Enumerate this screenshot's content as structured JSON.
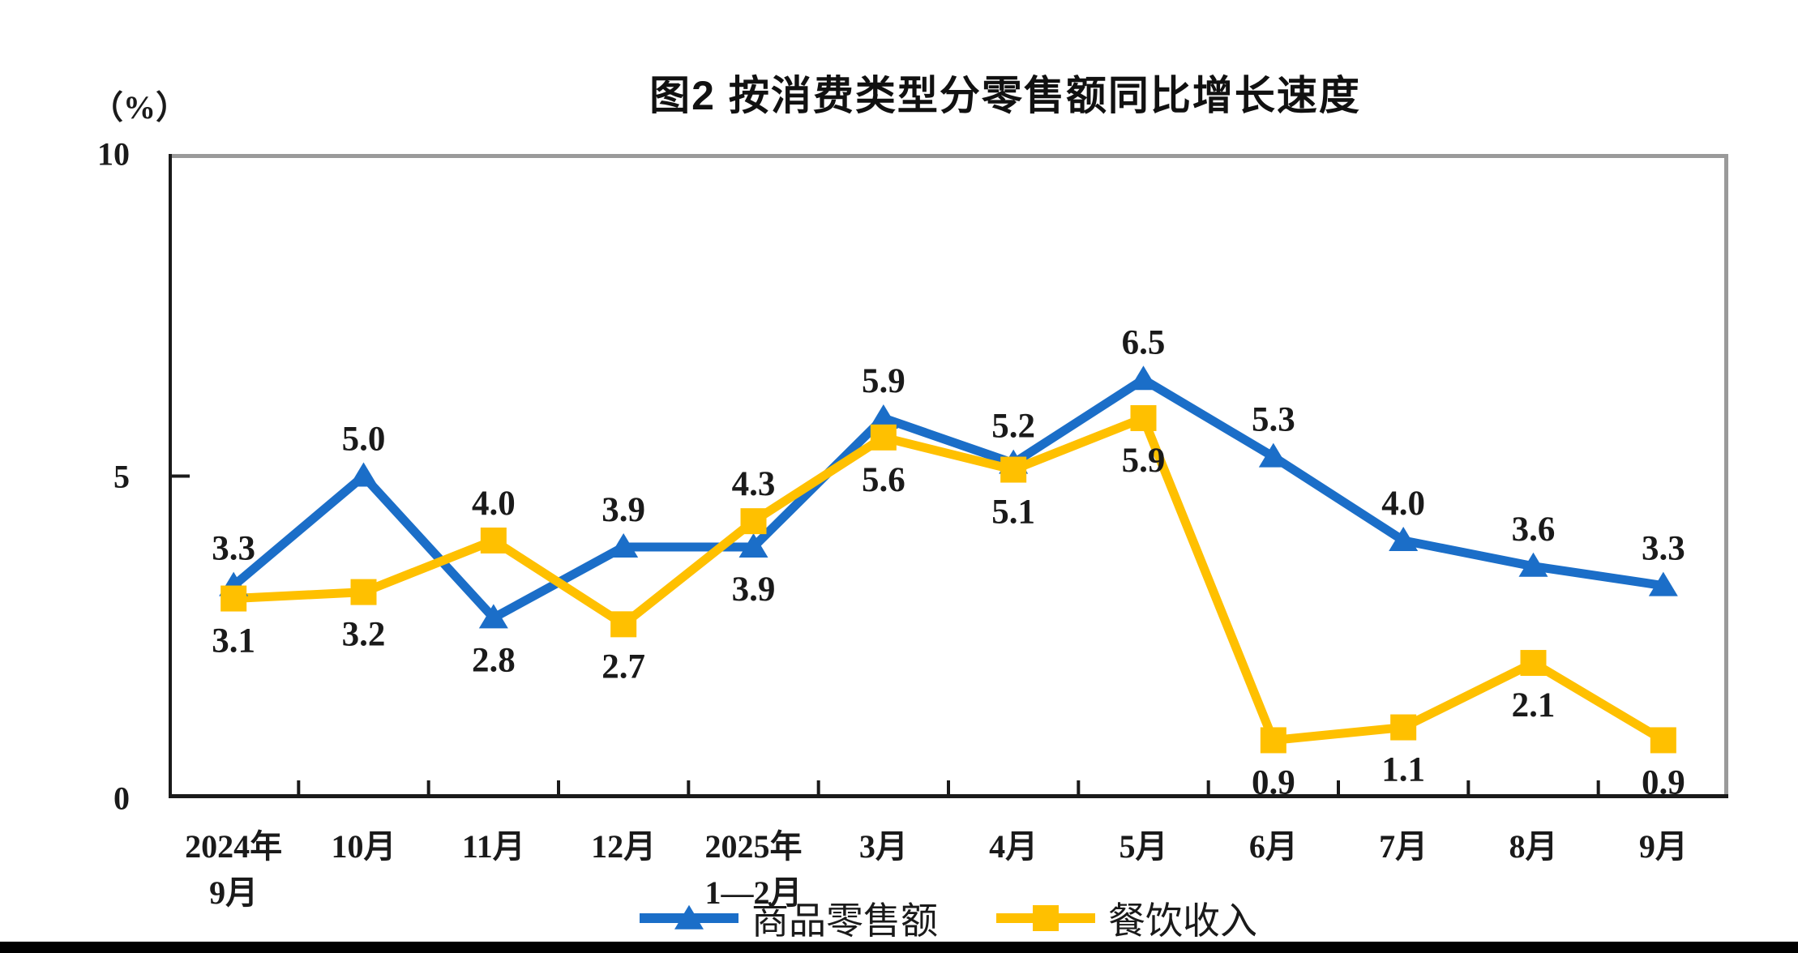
{
  "title": "图2 按消费类型分零售额同比增长速度",
  "unit_label": "（%）",
  "colors": {
    "series_goods_blue": "#1B6EC8",
    "series_catering_gold": "#FFC000",
    "axis_black": "#1a1a1a",
    "plot_border_gray": "#9A9A9A",
    "label_text": "#1a1a1a",
    "bottom_bar_black": "#000000"
  },
  "y_axis": {
    "ticks": [
      {
        "value": 10,
        "label": "10"
      },
      {
        "value": 5,
        "label": "5"
      },
      {
        "value": 0,
        "label": "0"
      }
    ]
  },
  "chart_data": {
    "type": "line",
    "title": "图2 按消费类型分零售额同比增长速度",
    "ylabel": "（%）",
    "ylim": [
      0,
      10
    ],
    "grid": false,
    "legend_position": "bottom",
    "categories": [
      "2024年\n9月",
      "10月",
      "11月",
      "12月",
      "2025年\n1—2月",
      "3月",
      "4月",
      "5月",
      "6月",
      "7月",
      "8月",
      "9月"
    ],
    "series": [
      {
        "name": "商品零售额",
        "color": "#1B6EC8",
        "marker": "triangle",
        "values": [
          3.3,
          5.0,
          2.8,
          3.9,
          3.9,
          5.9,
          5.2,
          6.5,
          5.3,
          4.0,
          3.6,
          3.3
        ],
        "label_positions": [
          "above",
          "above",
          "below",
          "above",
          "below",
          "above",
          "above",
          "above",
          "above",
          "above",
          "above",
          "above"
        ]
      },
      {
        "name": "餐饮收入",
        "color": "#FFC000",
        "marker": "square",
        "values": [
          3.1,
          3.2,
          4.0,
          2.7,
          4.3,
          5.6,
          5.1,
          5.9,
          0.9,
          1.1,
          2.1,
          0.9
        ],
        "label_positions": [
          "below",
          "below",
          "above",
          "below",
          "above",
          "below",
          "below",
          "below",
          "below",
          "below",
          "below",
          "below"
        ]
      }
    ]
  }
}
